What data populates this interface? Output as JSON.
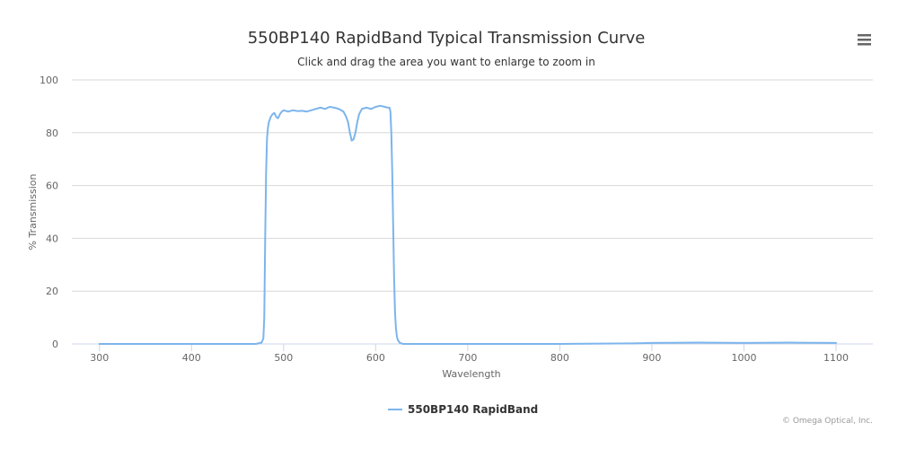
{
  "chart": {
    "title": "550BP140 RapidBand Typical Transmission Curve",
    "subtitle": "Click and drag the area you want to enlarge to zoom in",
    "credits": "© Omega Optical, Inc.",
    "menu_icon": "hamburger-menu-icon"
  },
  "chart_data": {
    "type": "line",
    "title": "550BP140 RapidBand Typical Transmission Curve",
    "subtitle": "Click and drag the area you want to enlarge to zoom in",
    "xlabel": "Wavelength",
    "ylabel": "% Transmission",
    "xlim": [
      270,
      1140
    ],
    "ylim": [
      0,
      100
    ],
    "x_ticks": [
      "300",
      "400",
      "500",
      "600",
      "700",
      "800",
      "900",
      "1000",
      "1100"
    ],
    "y_ticks": [
      "0",
      "20",
      "40",
      "60",
      "80",
      "100"
    ],
    "grid": true,
    "legend_position": "bottom-center",
    "colors": {
      "series": "#7cb5ec",
      "grid": "#d8d8d8",
      "axis": "#ccd6eb"
    },
    "series": [
      {
        "name": "550BP140 RapidBand",
        "x": [
          300,
          400,
          470,
          476,
          478,
          479,
          480,
          481,
          482,
          483,
          484,
          486,
          488,
          490,
          492,
          494,
          496,
          498,
          500,
          505,
          510,
          515,
          520,
          525,
          530,
          535,
          540,
          545,
          550,
          555,
          560,
          565,
          568,
          570,
          572,
          574,
          576,
          578,
          580,
          582,
          585,
          590,
          595,
          600,
          605,
          610,
          613,
          615,
          616,
          617,
          618,
          619,
          620,
          621,
          622,
          623,
          624,
          626,
          628,
          630,
          640,
          700,
          800,
          880,
          900,
          950,
          1000,
          1050,
          1100
        ],
        "y": [
          0,
          0,
          0,
          0.5,
          2,
          10,
          40,
          65,
          78,
          82,
          84,
          86,
          87,
          87.5,
          86,
          85.5,
          87,
          88,
          88.5,
          88,
          88.5,
          88.2,
          88.3,
          88,
          88.5,
          89,
          89.5,
          89,
          89.8,
          89.5,
          89,
          88,
          86,
          84,
          80,
          77,
          77.5,
          80,
          84,
          87,
          89,
          89.5,
          89,
          89.8,
          90.2,
          89.8,
          89.5,
          89.5,
          88,
          80,
          65,
          45,
          25,
          12,
          6,
          3,
          1.5,
          0.5,
          0.2,
          0,
          0,
          0,
          0,
          0.2,
          0.4,
          0.5,
          0.4,
          0.5,
          0.4
        ]
      }
    ]
  }
}
